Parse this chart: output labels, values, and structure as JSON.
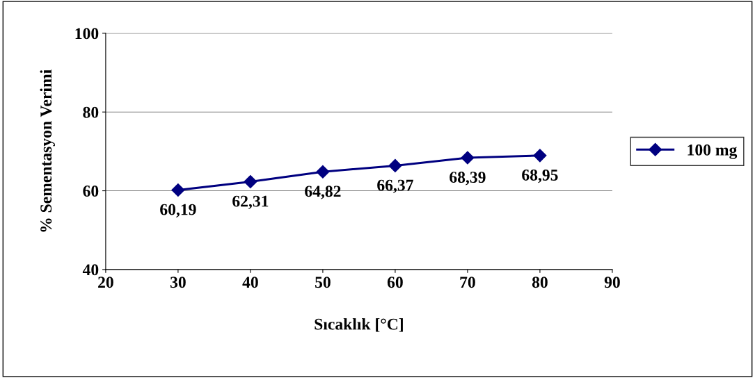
{
  "chart_data": {
    "type": "line",
    "xlabel": "Sıcaklık [°C]",
    "ylabel": "% Sementasyon Verimi",
    "x": [
      30,
      40,
      50,
      60,
      70,
      80
    ],
    "series": [
      {
        "name": "100 mg",
        "color": "#000080",
        "values": [
          60.19,
          62.31,
          64.82,
          66.37,
          68.39,
          68.95
        ],
        "value_labels": [
          "60,19",
          "62,31",
          "64,82",
          "66,37",
          "68,39",
          "68,95"
        ]
      }
    ],
    "xlim": [
      20,
      90
    ],
    "xticks": [
      20,
      30,
      40,
      50,
      60,
      70,
      80,
      90
    ],
    "ylim": [
      40,
      100
    ],
    "yticks": [
      40,
      60,
      80,
      100
    ],
    "grid": "y",
    "legend": "right",
    "marker": "diamond",
    "line_style": "solid"
  }
}
